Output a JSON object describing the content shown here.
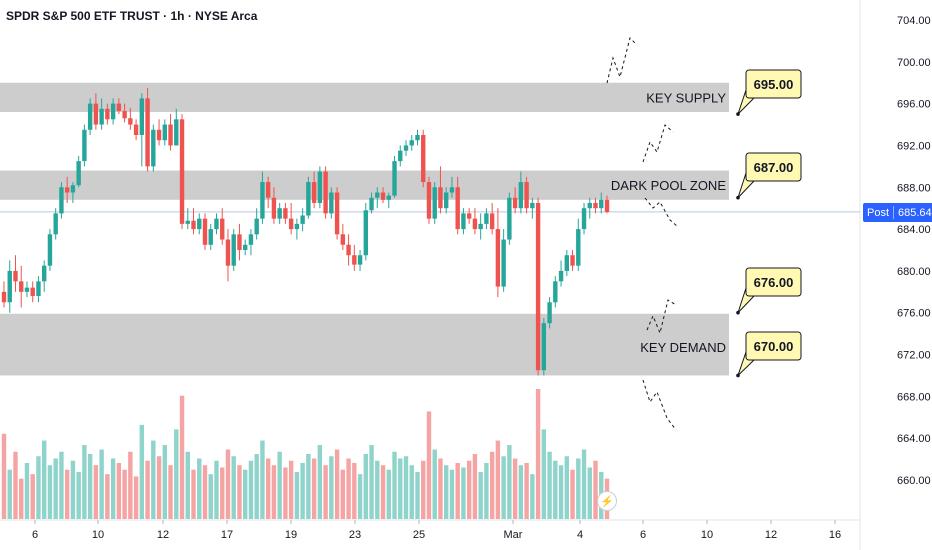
{
  "header": {
    "title": "SPDR S&P 500 ETF TRUST · 1h · NYSE Arca"
  },
  "price_tag": {
    "session": "Post",
    "price": "685.64"
  },
  "colors": {
    "up": "#26a69a",
    "down": "#ef5350",
    "vol_up": "#8fd4ca",
    "vol_down": "#f5a3a3",
    "zone": "#c8c8c8",
    "callout": "#fff9b3",
    "price_line": "#2962ff"
  },
  "chart_data": {
    "type": "candlestick",
    "y_range": [
      658,
      706
    ],
    "y_ticks": [
      "704.00",
      "700.00",
      "696.00",
      "692.00",
      "688.00",
      "684.00",
      "680.00",
      "676.00",
      "672.00",
      "668.00",
      "664.00",
      "660.00"
    ],
    "x_ticks": [
      "6",
      "10",
      "12",
      "17",
      "19",
      "23",
      "25",
      "Mar",
      "4",
      "6",
      "10",
      "12",
      "16"
    ],
    "last_price": 685.64,
    "zones": [
      {
        "label": "KEY SUPPLY",
        "low": 695.2,
        "high": 698.0
      },
      {
        "label": "DARK POOL ZONE",
        "low": 686.8,
        "high": 689.6
      },
      {
        "label": "KEY DEMAND",
        "low": 670.0,
        "high": 675.9
      }
    ],
    "callouts": [
      {
        "label": "695.00",
        "value": 695.0
      },
      {
        "label": "687.00",
        "value": 687.0
      },
      {
        "label": "676.00",
        "value": 676.0
      },
      {
        "label": "670.00",
        "value": 670.0
      }
    ],
    "candles": [
      [
        678,
        679,
        676.5,
        677
      ],
      [
        677,
        681,
        676,
        680
      ],
      [
        680,
        681.5,
        678,
        679
      ],
      [
        679,
        680.5,
        676.5,
        678
      ],
      [
        678,
        679,
        677.5,
        678.4
      ],
      [
        678.4,
        679,
        677,
        677.6
      ],
      [
        677.6,
        679.5,
        677,
        679
      ],
      [
        679,
        681,
        678,
        680.5
      ],
      [
        680.5,
        684,
        680,
        683.5
      ],
      [
        683.5,
        686,
        683,
        685.5
      ],
      [
        685.5,
        688.5,
        685,
        688
      ],
      [
        688,
        689,
        686.5,
        687.5
      ],
      [
        687.5,
        688.5,
        686.5,
        688.2
      ],
      [
        688.2,
        691,
        688,
        690.5
      ],
      [
        690.5,
        694,
        690,
        693.5
      ],
      [
        693.5,
        696.5,
        693,
        696
      ],
      [
        696,
        697,
        693.5,
        694
      ],
      [
        694,
        696.5,
        693.5,
        695.5
      ],
      [
        695.5,
        696,
        694,
        694.5
      ],
      [
        694.5,
        696.5,
        694,
        696
      ],
      [
        696,
        696.5,
        695,
        695.3
      ],
      [
        695.3,
        696,
        694.2,
        694.6
      ],
      [
        694.6,
        695.6,
        693.5,
        694
      ],
      [
        694,
        694.5,
        692.5,
        693
      ],
      [
        693,
        697,
        690,
        696.5
      ],
      [
        696.5,
        697.5,
        689.5,
        690
      ],
      [
        690,
        694,
        689.5,
        693.5
      ],
      [
        693.5,
        694.5,
        692,
        692.5
      ],
      [
        692.5,
        694.5,
        692,
        694
      ],
      [
        694,
        695,
        691.5,
        692
      ],
      [
        692,
        695.5,
        692,
        694.5
      ],
      [
        694.5,
        695,
        684,
        684.5
      ],
      [
        684.5,
        686,
        684,
        684.8
      ],
      [
        684.8,
        686,
        683.5,
        684
      ],
      [
        684,
        685.5,
        683.5,
        685
      ],
      [
        685,
        685.5,
        682,
        682.5
      ],
      [
        682.5,
        684.5,
        682,
        684
      ],
      [
        684,
        685.5,
        683.5,
        685
      ],
      [
        685,
        686,
        682.5,
        683
      ],
      [
        683,
        684,
        679,
        680.5
      ],
      [
        680.5,
        684,
        680,
        683.5
      ],
      [
        683.5,
        684.5,
        681,
        682
      ],
      [
        682,
        683,
        681.5,
        682.5
      ],
      [
        682.5,
        684,
        681.5,
        683.5
      ],
      [
        683.5,
        686,
        683,
        685
      ],
      [
        685,
        689.5,
        684.5,
        688.5
      ],
      [
        688.5,
        689,
        686,
        687
      ],
      [
        687,
        688,
        684.5,
        685
      ],
      [
        685,
        686.5,
        684.5,
        686
      ],
      [
        686,
        686.5,
        684.5,
        685
      ],
      [
        685,
        686.5,
        683.5,
        684
      ],
      [
        684,
        685,
        683,
        684.5
      ],
      [
        684.5,
        686,
        683.8,
        685.3
      ],
      [
        685.3,
        689,
        685,
        688.5
      ],
      [
        688.5,
        689.5,
        686,
        686.5
      ],
      [
        686.5,
        690,
        686,
        689.5
      ],
      [
        689.5,
        690,
        685,
        685.5
      ],
      [
        685.5,
        688,
        685,
        687.5
      ],
      [
        687.5,
        688,
        683,
        683.5
      ],
      [
        683.5,
        684.5,
        682,
        682.5
      ],
      [
        682.5,
        683.5,
        680.5,
        681.5
      ],
      [
        681.5,
        682.5,
        680,
        680.6
      ],
      [
        680.6,
        682,
        680,
        681.5
      ],
      [
        681.5,
        686.5,
        681,
        685.8
      ],
      [
        685.8,
        687.5,
        685.5,
        687
      ],
      [
        687,
        688,
        686,
        687.5
      ],
      [
        687.5,
        688,
        686.5,
        686.8
      ],
      [
        686.8,
        687.5,
        686,
        687.2
      ],
      [
        687.2,
        691,
        687,
        690.5
      ],
      [
        690.5,
        692,
        690,
        691.5
      ],
      [
        691.5,
        692.5,
        691,
        692
      ],
      [
        692,
        693,
        691.5,
        692.5
      ],
      [
        692.5,
        693.5,
        692,
        693
      ],
      [
        693,
        693.5,
        688,
        688.5
      ],
      [
        688.5,
        689,
        684.5,
        685
      ],
      [
        685,
        688.5,
        684.5,
        688
      ],
      [
        688,
        690,
        685.5,
        686
      ],
      [
        686,
        688,
        685.5,
        687.5
      ],
      [
        687.5,
        689,
        687,
        688
      ],
      [
        688,
        689,
        683.5,
        684
      ],
      [
        684,
        686,
        683.5,
        685.5
      ],
      [
        685.5,
        686,
        684.5,
        685
      ],
      [
        685,
        686,
        683.5,
        684
      ],
      [
        684,
        685.5,
        683,
        684.5
      ],
      [
        684.5,
        686,
        684,
        685.5
      ],
      [
        685.5,
        686.5,
        683.5,
        684
      ],
      [
        684,
        686,
        677.5,
        678.5
      ],
      [
        678.5,
        684,
        678,
        683
      ],
      [
        683,
        687.5,
        682.5,
        687
      ],
      [
        687,
        688,
        685.5,
        686
      ],
      [
        686,
        689.5,
        685.5,
        688.5
      ],
      [
        688.5,
        689,
        685.5,
        686
      ],
      [
        686,
        687,
        685,
        686.5
      ],
      [
        686.5,
        687,
        670,
        670.5
      ],
      [
        670.5,
        675.5,
        670,
        675
      ],
      [
        675,
        677.5,
        674.5,
        677
      ],
      [
        677,
        679.5,
        676.5,
        679
      ],
      [
        679,
        681,
        678.5,
        680
      ],
      [
        680,
        682,
        679.5,
        681.5
      ],
      [
        681.5,
        682,
        680,
        680.5
      ],
      [
        680.5,
        685,
        680,
        684
      ],
      [
        684,
        686.5,
        683.5,
        686
      ],
      [
        686,
        687,
        685,
        686.5
      ],
      [
        686.5,
        687,
        685.5,
        686
      ],
      [
        686,
        687.5,
        685.5,
        686.8
      ],
      [
        686.8,
        687.2,
        685.5,
        685.64
      ]
    ],
    "volumes": [
      38,
      22,
      30,
      18,
      25,
      20,
      28,
      35,
      24,
      27,
      30,
      22,
      26,
      21,
      33,
      29,
      24,
      31,
      20,
      27,
      25,
      22,
      30,
      19,
      42,
      26,
      35,
      28,
      33,
      24,
      40,
      55,
      30,
      22,
      27,
      24,
      20,
      26,
      23,
      31,
      28,
      24,
      22,
      26,
      29,
      35,
      27,
      24,
      30,
      23,
      26,
      21,
      25,
      29,
      27,
      33,
      24,
      28,
      31,
      22,
      27,
      25,
      20,
      29,
      33,
      26,
      24,
      22,
      30,
      27,
      28,
      24,
      21,
      26,
      48,
      31,
      27,
      24,
      22,
      25,
      23,
      26,
      29,
      21,
      25,
      30,
      35,
      28,
      33,
      27,
      24,
      25,
      20,
      58,
      40,
      30,
      26,
      24,
      28,
      22,
      27,
      31,
      23,
      26,
      21,
      18
    ],
    "projections": [
      {
        "name": "supply-projection",
        "points": [
          [
            607,
            83
          ],
          [
            613,
            58
          ],
          [
            620,
            77
          ],
          [
            630,
            38
          ],
          [
            637,
            45
          ]
        ]
      },
      {
        "name": "darkpool-projection",
        "points": [
          [
            643,
            162
          ],
          [
            650,
            142
          ],
          [
            657,
            152
          ],
          [
            665,
            125
          ],
          [
            673,
            132
          ]
        ]
      },
      {
        "name": "darkpool-down-projection",
        "points": [
          [
            645,
            198
          ],
          [
            653,
            208
          ],
          [
            660,
            202
          ],
          [
            670,
            220
          ],
          [
            677,
            226
          ]
        ]
      },
      {
        "name": "demand-up-projection",
        "points": [
          [
            647,
            330
          ],
          [
            653,
            316
          ],
          [
            660,
            333
          ],
          [
            668,
            300
          ],
          [
            676,
            305
          ]
        ]
      },
      {
        "name": "demand-down-projection",
        "points": [
          [
            643,
            380
          ],
          [
            650,
            402
          ],
          [
            657,
            392
          ],
          [
            667,
            418
          ],
          [
            676,
            430
          ]
        ]
      }
    ]
  }
}
